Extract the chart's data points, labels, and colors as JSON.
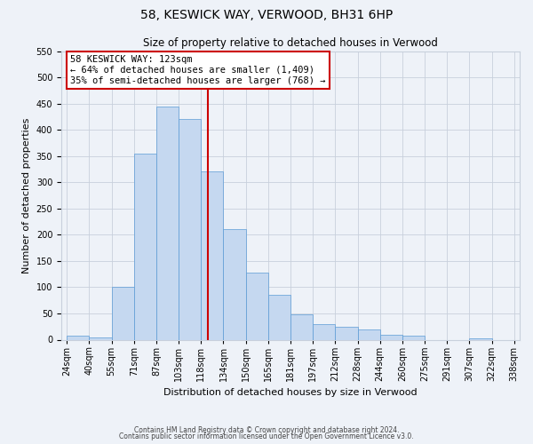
{
  "title": "58, KESWICK WAY, VERWOOD, BH31 6HP",
  "subtitle": "Size of property relative to detached houses in Verwood",
  "xlabel": "Distribution of detached houses by size in Verwood",
  "ylabel": "Number of detached properties",
  "bin_labels": [
    "24sqm",
    "40sqm",
    "55sqm",
    "71sqm",
    "87sqm",
    "103sqm",
    "118sqm",
    "134sqm",
    "150sqm",
    "165sqm",
    "181sqm",
    "197sqm",
    "212sqm",
    "228sqm",
    "244sqm",
    "260sqm",
    "275sqm",
    "291sqm",
    "307sqm",
    "322sqm",
    "338sqm"
  ],
  "bar_values": [
    7,
    5,
    100,
    355,
    445,
    420,
    320,
    210,
    128,
    85,
    48,
    29,
    25,
    20,
    10,
    7,
    0,
    0,
    2,
    0
  ],
  "bar_color": "#c5d8f0",
  "bar_edge_color": "#5b9bd5",
  "vline_color": "#cc0000",
  "vline_x": 6,
  "annotation_title": "58 KESWICK WAY: 123sqm",
  "annotation_line1": "← 64% of detached houses are smaller (1,409)",
  "annotation_line2": "35% of semi-detached houses are larger (768) →",
  "annotation_box_color": "#cc0000",
  "ylim": [
    0,
    550
  ],
  "yticks": [
    0,
    50,
    100,
    150,
    200,
    250,
    300,
    350,
    400,
    450,
    500,
    550
  ],
  "footnote1": "Contains HM Land Registry data © Crown copyright and database right 2024.",
  "footnote2": "Contains public sector information licensed under the Open Government Licence v3.0.",
  "bg_color": "#eef2f8",
  "grid_color": "#c8d0dc",
  "title_fontsize": 10,
  "subtitle_fontsize": 8.5,
  "ylabel_fontsize": 8,
  "xlabel_fontsize": 8,
  "tick_fontsize": 7,
  "annot_fontsize": 7.5,
  "footnote_fontsize": 5.5
}
